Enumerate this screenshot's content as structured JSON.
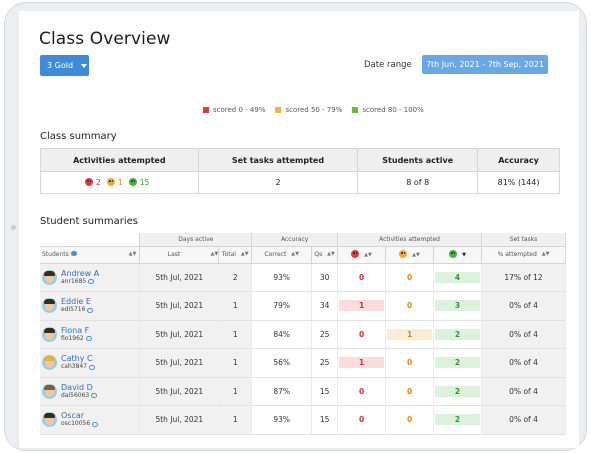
{
  "page": {
    "title": "Class Overview",
    "group_button": "3 Gold",
    "date_label": "Date range",
    "date_value": "7th Jun, 2021 - 7th Sep, 2021"
  },
  "legend": [
    {
      "label": "scored 0 - 49%",
      "color": "#e03b3b"
    },
    {
      "label": "scored 50 - 79%",
      "color": "#f2b43b"
    },
    {
      "label": "scored 80 - 100%",
      "color": "#5cc23c"
    }
  ],
  "class_summary": {
    "title": "Class summary",
    "headers": [
      "Activities attempted",
      "Set tasks attempted",
      "Students active",
      "Accuracy"
    ],
    "activities": {
      "red": "2",
      "amber": "1",
      "green": "15"
    },
    "set_tasks": "2",
    "students_active": "8 of 8",
    "accuracy": "81% (144)"
  },
  "student_summaries": {
    "title": "Student summaries",
    "group_headers": {
      "days_active": "Days active",
      "accuracy": "Accuracy",
      "activities": "Activities attempted",
      "set_tasks": "Set tasks"
    },
    "columns": {
      "students": "Students",
      "last": "Last",
      "total": "Total",
      "correct": "Correct",
      "qs": "Qs",
      "percent_attempted": "% attempted"
    },
    "rows": [
      {
        "name": "Andrew A",
        "username": "anr1685",
        "last": "5th Jul, 2021",
        "total": "2",
        "correct": "93%",
        "qs": "30",
        "red": "0",
        "amber": "0",
        "green": "4",
        "set_tasks": "17% of 12",
        "hair": "dark"
      },
      {
        "name": "Eddie E",
        "username": "edi5716",
        "last": "5th Jul, 2021",
        "total": "1",
        "correct": "79%",
        "qs": "34",
        "red": "1",
        "amber": "0",
        "green": "3",
        "set_tasks": "0% of 4",
        "hair": "dark"
      },
      {
        "name": "Fiona F",
        "username": "fio1962",
        "last": "5th Jul, 2021",
        "total": "1",
        "correct": "84%",
        "qs": "25",
        "red": "0",
        "amber": "1",
        "green": "2",
        "set_tasks": "0% of 4",
        "hair": "dark"
      },
      {
        "name": "Cathy C",
        "username": "cah3847",
        "last": "5th Jul, 2021",
        "total": "1",
        "correct": "56%",
        "qs": "25",
        "red": "1",
        "amber": "0",
        "green": "2",
        "set_tasks": "0% of 4",
        "hair": "blonde"
      },
      {
        "name": "David D",
        "username": "dai56063",
        "last": "5th Jul, 2021",
        "total": "1",
        "correct": "87%",
        "qs": "15",
        "red": "0",
        "amber": "0",
        "green": "2",
        "set_tasks": "0% of 4",
        "hair": "brown"
      },
      {
        "name": "Oscar",
        "username": "osc10056",
        "last": "5th Jul, 2021",
        "total": "1",
        "correct": "93%",
        "qs": "15",
        "red": "0",
        "amber": "0",
        "green": "2",
        "set_tasks": "0% of 4",
        "hair": "dark"
      }
    ]
  }
}
